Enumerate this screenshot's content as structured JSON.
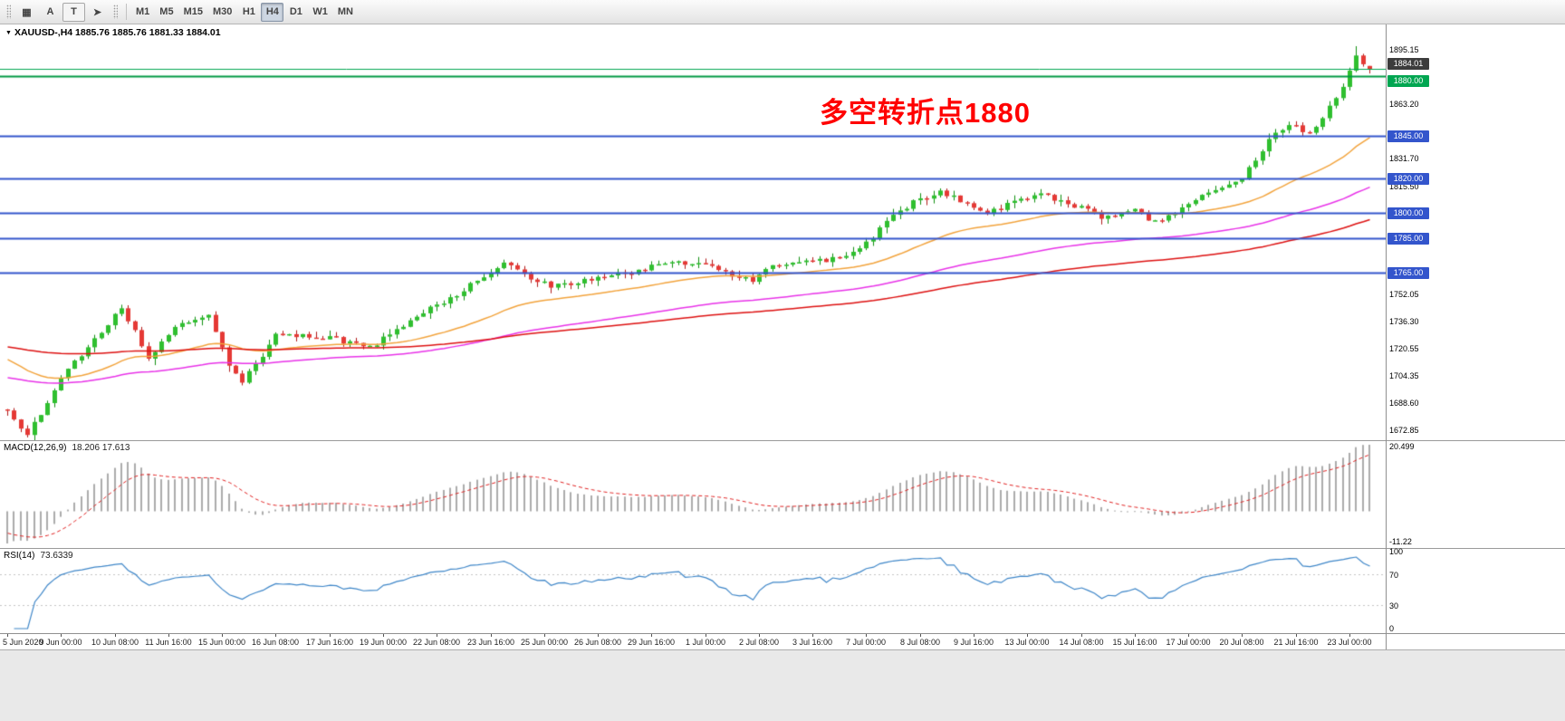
{
  "toolbar": {
    "icon_buttons": [
      {
        "glyph": "▦"
      },
      {
        "glyph": "A"
      },
      {
        "glyph": "T"
      },
      {
        "glyph": "➤"
      }
    ],
    "timeframes": [
      "M1",
      "M5",
      "M15",
      "M30",
      "H1",
      "H4",
      "D1",
      "W1",
      "MN"
    ],
    "active_timeframe": "H4"
  },
  "glyphs": {
    "dropdown": "▼"
  },
  "chart": {
    "symbol_ohlc": "XAUUSD-,H4  1885.76 1885.76 1881.33 1884.01",
    "annotation_text": "多空转折点1880",
    "annotation_color": "#FF0000",
    "bars": 204,
    "view_price_min": 1667,
    "view_price_max": 1910,
    "recent_high": 1897.3,
    "last_ohlc": {
      "open": 1885.76,
      "high": 1885.76,
      "low": 1881.33,
      "close": 1884.01
    },
    "price_path": [
      [
        0,
        1683
      ],
      [
        3,
        1670
      ],
      [
        8,
        1703
      ],
      [
        14,
        1730
      ],
      [
        17,
        1745
      ],
      [
        21,
        1716
      ],
      [
        26,
        1736
      ],
      [
        30,
        1740
      ],
      [
        33,
        1712
      ],
      [
        35,
        1701
      ],
      [
        40,
        1728
      ],
      [
        48,
        1727
      ],
      [
        54,
        1721
      ],
      [
        58,
        1731
      ],
      [
        62,
        1742
      ],
      [
        66,
        1750
      ],
      [
        70,
        1760
      ],
      [
        74,
        1771
      ],
      [
        78,
        1760
      ],
      [
        82,
        1757
      ],
      [
        88,
        1762
      ],
      [
        94,
        1766
      ],
      [
        98,
        1771
      ],
      [
        104,
        1769
      ],
      [
        108,
        1764
      ],
      [
        111,
        1759
      ],
      [
        114,
        1769
      ],
      [
        120,
        1771
      ],
      [
        126,
        1776
      ],
      [
        130,
        1790
      ],
      [
        133,
        1801
      ],
      [
        136,
        1808
      ],
      [
        139,
        1813
      ],
      [
        143,
        1804
      ],
      [
        146,
        1799
      ],
      [
        150,
        1806
      ],
      [
        154,
        1810
      ],
      [
        158,
        1806
      ],
      [
        163,
        1798
      ],
      [
        168,
        1801
      ],
      [
        171,
        1794
      ],
      [
        176,
        1806
      ],
      [
        180,
        1812
      ],
      [
        184,
        1820
      ],
      [
        188,
        1842
      ],
      [
        191,
        1852
      ],
      [
        194,
        1847
      ],
      [
        197,
        1861
      ],
      [
        199,
        1874
      ],
      [
        201,
        1891
      ],
      [
        202,
        1887
      ],
      [
        203,
        1884
      ]
    ],
    "price_axis_labels": [
      "1895.15",
      "1863.20",
      "1831.70",
      "1815.50",
      "1752.05",
      "1736.30",
      "1720.55",
      "1704.35",
      "1688.60",
      "1672.85"
    ],
    "current_badge": {
      "value": "1884.01",
      "bg": "#3C3C3C"
    },
    "hlines": [
      {
        "price": 1884.01,
        "color": "#00A651",
        "width": 1
      },
      {
        "price": 1880.0,
        "color": "#009944",
        "width": 2,
        "badge": "1880.00",
        "badge_bg": "#00A651",
        "badge_dy": -1
      },
      {
        "price": 1845.0,
        "color": "#3355CC",
        "width": 2,
        "badge": "1845.00",
        "badge_bg": "#3355CC",
        "badge_dy": -6
      },
      {
        "price": 1820.0,
        "color": "#3355CC",
        "width": 2,
        "badge": "1820.00",
        "badge_bg": "#3355CC",
        "badge_dy": -6
      },
      {
        "price": 1800.0,
        "color": "#3355CC",
        "width": 2,
        "badge": "1800.00",
        "badge_bg": "#3355CC",
        "badge_dy": -6
      },
      {
        "price": 1785.0,
        "color": "#3355CC",
        "width": 2,
        "badge": "1785.00",
        "badge_bg": "#3355CC",
        "badge_dy": -6
      },
      {
        "price": 1765.0,
        "color": "#3355CC",
        "width": 2,
        "badge": "1765.00",
        "badge_bg": "#3355CC",
        "badge_dy": -6
      }
    ],
    "mas": [
      {
        "period": 34,
        "init": 1716,
        "color": "#F2A33C",
        "width": 1.5
      },
      {
        "period": 89,
        "init": 1704,
        "color": "#E832E8",
        "width": 1.5
      },
      {
        "period": 150,
        "init": 1722,
        "color": "#DD1111",
        "width": 1.5
      }
    ],
    "candle_colors": {
      "up_fill": "#2FBF2F",
      "up_stroke": "#0F8F0F",
      "down_fill": "#E53935",
      "down_stroke": "#B01818"
    }
  },
  "macd": {
    "label": "MACD(12,26,9)",
    "values_text": "18.206 17.613",
    "fast": 12,
    "slow": 26,
    "signal": 9,
    "scale_top": "20.499",
    "scale_bottom": "-11.22",
    "hist_color": "#ABABAB",
    "signal_color": "#E02020"
  },
  "rsi": {
    "label": "RSI(14)",
    "value_text": "73.6339",
    "period": 14,
    "axis_labels": [
      "100",
      "70",
      "30",
      "0"
    ],
    "levels": [
      70,
      30
    ],
    "line_color": "#3E86C8"
  },
  "time_axis": {
    "label_step_bars": 8,
    "labels": [
      "5 Jun 2020",
      "9 Jun 00:00",
      "10 Jun 08:00",
      "11 Jun 16:00",
      "15 Jun 00:00",
      "16 Jun 08:00",
      "17 Jun 16:00",
      "19 Jun 00:00",
      "22 Jun 08:00",
      "23 Jun 16:00",
      "25 Jun 00:00",
      "26 Jun 08:00",
      "29 Jun 16:00",
      "1 Jul 00:00",
      "2 Jul 08:00",
      "3 Jul 16:00",
      "7 Jul 00:00",
      "8 Jul 08:00",
      "9 Jul 16:00",
      "13 Jul 00:00",
      "14 Jul 08:00",
      "15 Jul 16:00",
      "17 Jul 00:00",
      "20 Jul 08:00",
      "21 Jul 16:00",
      "23 Jul 00:00"
    ]
  }
}
